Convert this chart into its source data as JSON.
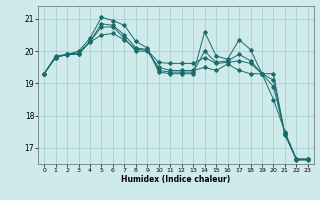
{
  "title": "",
  "xlabel": "Humidex (Indice chaleur)",
  "background_color": "#ceeaea",
  "grid_color": "#aacece",
  "line_color": "#1a6b6b",
  "xlim": [
    -0.5,
    23.5
  ],
  "ylim": [
    16.5,
    21.4
  ],
  "yticks": [
    17,
    18,
    19,
    20,
    21
  ],
  "xticks": [
    0,
    1,
    2,
    3,
    4,
    5,
    6,
    7,
    8,
    9,
    10,
    11,
    12,
    13,
    14,
    15,
    16,
    17,
    18,
    19,
    20,
    21,
    22,
    23
  ],
  "series": [
    {
      "x": [
        0,
        1,
        2,
        3,
        4,
        5,
        6,
        7,
        8,
        9,
        10,
        11,
        12,
        13,
        14,
        15,
        16,
        17,
        18,
        19,
        20,
        21,
        22,
        23
      ],
      "y": [
        19.3,
        19.8,
        19.9,
        19.9,
        20.3,
        20.75,
        20.75,
        20.4,
        20.0,
        20.0,
        19.5,
        19.4,
        19.4,
        19.4,
        19.5,
        19.4,
        19.6,
        19.4,
        19.3,
        19.3,
        18.5,
        17.5,
        16.65,
        16.65
      ]
    },
    {
      "x": [
        0,
        1,
        2,
        3,
        4,
        5,
        6,
        7,
        8,
        9,
        10,
        11,
        12,
        13,
        14,
        15,
        16,
        17,
        18,
        19,
        20,
        21,
        22,
        23
      ],
      "y": [
        19.3,
        19.8,
        19.9,
        20.0,
        20.4,
        21.05,
        20.95,
        20.8,
        20.3,
        20.1,
        19.35,
        19.3,
        19.3,
        19.3,
        20.6,
        19.85,
        19.75,
        20.35,
        20.05,
        19.3,
        19.3,
        17.4,
        16.65,
        16.65
      ]
    },
    {
      "x": [
        0,
        1,
        2,
        3,
        4,
        5,
        6,
        7,
        8,
        9,
        10,
        11,
        12,
        13,
        14,
        15,
        16,
        17,
        18,
        19,
        20,
        21,
        22,
        23
      ],
      "y": [
        19.3,
        19.85,
        19.9,
        19.95,
        20.3,
        20.85,
        20.8,
        20.5,
        20.1,
        20.05,
        19.4,
        19.35,
        19.35,
        19.35,
        20.0,
        19.65,
        19.7,
        19.9,
        19.7,
        19.3,
        18.9,
        17.45,
        16.65,
        16.65
      ]
    },
    {
      "x": [
        0,
        1,
        2,
        3,
        4,
        5,
        6,
        7,
        8,
        9,
        10,
        11,
        12,
        13,
        14,
        15,
        16,
        17,
        18,
        19,
        20,
        21,
        22,
        23
      ],
      "y": [
        19.3,
        19.82,
        19.89,
        19.92,
        20.28,
        20.5,
        20.55,
        20.35,
        20.07,
        20.02,
        19.65,
        19.62,
        19.62,
        19.62,
        19.8,
        19.62,
        19.65,
        19.7,
        19.62,
        19.3,
        19.1,
        17.43,
        16.62,
        16.62
      ]
    }
  ]
}
